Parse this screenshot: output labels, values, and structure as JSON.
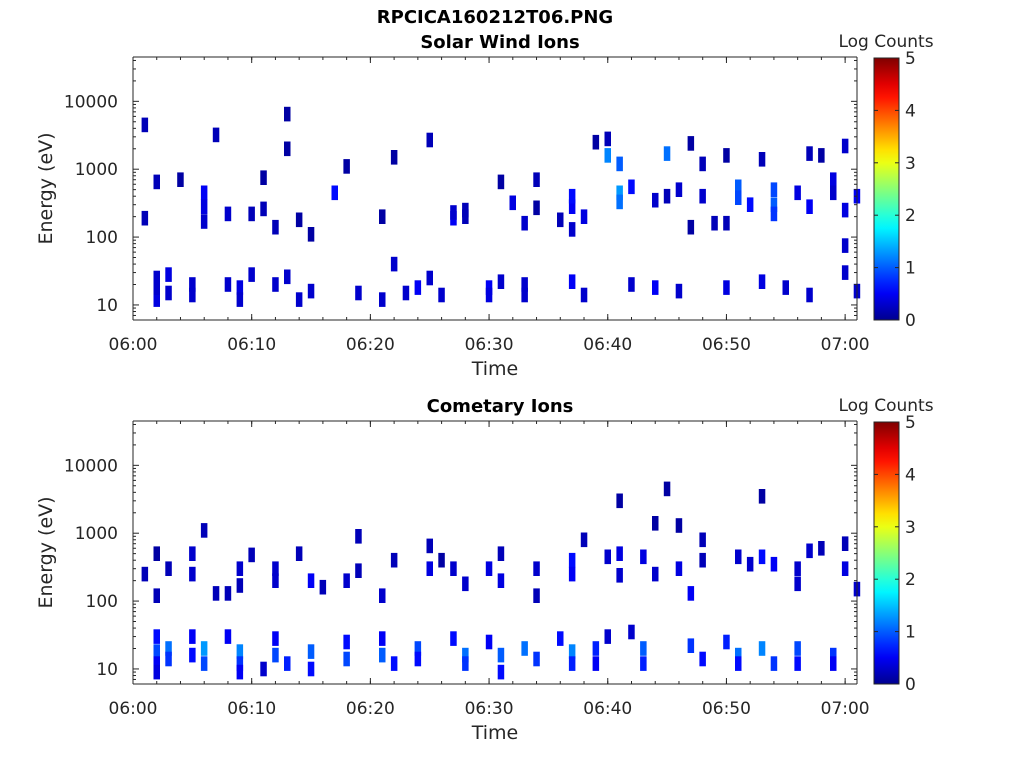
{
  "figure": {
    "title": "RPCICA160212T06.PNG"
  },
  "colormap": {
    "name": "jet",
    "stops": [
      "#00008f",
      "#0000ff",
      "#00ffff",
      "#ffff00",
      "#ff0000",
      "#800000"
    ]
  },
  "chart_data": [
    {
      "type": "heatmap",
      "title": "Solar Wind Ions",
      "xlabel": "Time",
      "ylabel": "Energy (eV)",
      "x_range": [
        "06:00",
        "07:01"
      ],
      "x_ticks": [
        "06:00",
        "06:10",
        "06:20",
        "06:30",
        "06:40",
        "06:50",
        "07:00"
      ],
      "y_scale": "log",
      "y_range": [
        6,
        45000
      ],
      "y_ticks": [
        10,
        100,
        1000,
        10000
      ],
      "y_tick_labels": [
        "10",
        "100",
        "1000",
        "10000"
      ],
      "colorbar": {
        "label": "Log Counts",
        "range": [
          0,
          5
        ],
        "ticks": [
          "0",
          "1",
          "2",
          "3",
          "4",
          "5"
        ]
      },
      "cells": [
        [
          "06:01",
          4500,
          0.2
        ],
        [
          "06:01",
          190,
          0.2
        ],
        [
          "06:02",
          650,
          0.2
        ],
        [
          "06:02",
          12,
          0.4
        ],
        [
          "06:02",
          18,
          0.3
        ],
        [
          "06:02",
          25,
          0.3
        ],
        [
          "06:03",
          28,
          0.4
        ],
        [
          "06:03",
          15,
          0.3
        ],
        [
          "06:04",
          700,
          0.1
        ],
        [
          "06:05",
          20,
          0.3
        ],
        [
          "06:05",
          14,
          0.3
        ],
        [
          "06:06",
          450,
          0.5
        ],
        [
          "06:06",
          280,
          0.4
        ],
        [
          "06:06",
          170,
          0.3
        ],
        [
          "06:07",
          3200,
          0.2
        ],
        [
          "06:08",
          220,
          0.3
        ],
        [
          "06:08",
          20,
          0.3
        ],
        [
          "06:09",
          18,
          0.4
        ],
        [
          "06:09",
          12,
          0.3
        ],
        [
          "06:10",
          28,
          0.3
        ],
        [
          "06:10",
          220,
          0.2
        ],
        [
          "06:11",
          260,
          0.2
        ],
        [
          "06:11",
          750,
          0.1
        ],
        [
          "06:12",
          20,
          0.3
        ],
        [
          "06:12",
          140,
          0.2
        ],
        [
          "06:13",
          6500,
          0.1
        ],
        [
          "06:13",
          2000,
          0.1
        ],
        [
          "06:13",
          26,
          0.3
        ],
        [
          "06:14",
          180,
          0.1
        ],
        [
          "06:14",
          12,
          0.3
        ],
        [
          "06:15",
          16,
          0.3
        ],
        [
          "06:15",
          110,
          0.1
        ],
        [
          "06:17",
          450,
          0.6
        ],
        [
          "06:18",
          1100,
          0.1
        ],
        [
          "06:19",
          15,
          0.3
        ],
        [
          "06:21",
          12,
          0.3
        ],
        [
          "06:21",
          200,
          0.1
        ],
        [
          "06:22",
          40,
          0.3
        ],
        [
          "06:22",
          1500,
          0.1
        ],
        [
          "06:23",
          15,
          0.3
        ],
        [
          "06:24",
          18,
          0.5
        ],
        [
          "06:25",
          25,
          0.3
        ],
        [
          "06:25",
          2700,
          0.2
        ],
        [
          "06:26",
          14,
          0.3
        ],
        [
          "06:27",
          190,
          0.5
        ],
        [
          "06:27",
          230,
          0.3
        ],
        [
          "06:28",
          200,
          0.2
        ],
        [
          "06:28",
          250,
          0.2
        ],
        [
          "06:30",
          18,
          0.5
        ],
        [
          "06:30",
          14,
          0.4
        ],
        [
          "06:31",
          22,
          0.3
        ],
        [
          "06:31",
          650,
          0.1
        ],
        [
          "06:32",
          320,
          0.4
        ],
        [
          "06:33",
          160,
          0.3
        ],
        [
          "06:33",
          20,
          0.3
        ],
        [
          "06:33",
          14,
          0.3
        ],
        [
          "06:34",
          700,
          0.2
        ],
        [
          "06:34",
          270,
          0.1
        ],
        [
          "06:36",
          180,
          0.2
        ],
        [
          "06:37",
          22,
          0.5
        ],
        [
          "06:37",
          280,
          0.5
        ],
        [
          "06:37",
          400,
          0.6
        ],
        [
          "06:37",
          130,
          0.3
        ],
        [
          "06:38",
          200,
          0.4
        ],
        [
          "06:38",
          14,
          0.3
        ],
        [
          "06:39",
          2500,
          0.1
        ],
        [
          "06:40",
          2800,
          0.2
        ],
        [
          "06:40",
          1600,
          1.2
        ],
        [
          "06:41",
          1200,
          1.0
        ],
        [
          "06:41",
          450,
          1.3
        ],
        [
          "06:41",
          330,
          1.1
        ],
        [
          "06:42",
          550,
          0.6
        ],
        [
          "06:42",
          20,
          0.3
        ],
        [
          "06:44",
          18,
          0.5
        ],
        [
          "06:44",
          350,
          0.3
        ],
        [
          "06:45",
          1700,
          1.1
        ],
        [
          "06:45",
          400,
          0.2
        ],
        [
          "06:46",
          16,
          0.3
        ],
        [
          "06:46",
          500,
          0.3
        ],
        [
          "06:47",
          140,
          0.1
        ],
        [
          "06:47",
          2400,
          0.1
        ],
        [
          "06:48",
          1200,
          0.2
        ],
        [
          "06:48",
          400,
          0.3
        ],
        [
          "06:49",
          160,
          0.2
        ],
        [
          "06:50",
          1600,
          0.1
        ],
        [
          "06:50",
          18,
          0.4
        ],
        [
          "06:50",
          160,
          0.2
        ],
        [
          "06:51",
          550,
          1.0
        ],
        [
          "06:51",
          380,
          0.9
        ],
        [
          "06:52",
          300,
          0.6
        ],
        [
          "06:53",
          1400,
          0.2
        ],
        [
          "06:53",
          22,
          0.4
        ],
        [
          "06:54",
          500,
          0.9
        ],
        [
          "06:54",
          300,
          1.0
        ],
        [
          "06:54",
          220,
          0.8
        ],
        [
          "06:55",
          18,
          0.3
        ],
        [
          "06:56",
          450,
          0.4
        ],
        [
          "06:57",
          1700,
          0.2
        ],
        [
          "06:57",
          14,
          0.3
        ],
        [
          "06:57",
          280,
          0.5
        ],
        [
          "06:58",
          1600,
          0.1
        ],
        [
          "06:59",
          700,
          0.4
        ],
        [
          "06:59",
          450,
          0.3
        ],
        [
          "07:00",
          75,
          0.3
        ],
        [
          "07:00",
          30,
          0.3
        ],
        [
          "07:00",
          2200,
          0.3
        ],
        [
          "07:00",
          250,
          0.4
        ],
        [
          "07:01",
          400,
          0.5
        ],
        [
          "07:01",
          16,
          0.3
        ]
      ]
    },
    {
      "type": "heatmap",
      "title": "Cometary Ions",
      "xlabel": "Time",
      "ylabel": "Energy (eV)",
      "x_range": [
        "06:00",
        "07:01"
      ],
      "x_ticks": [
        "06:00",
        "06:10",
        "06:20",
        "06:30",
        "06:40",
        "06:50",
        "07:00"
      ],
      "y_scale": "log",
      "y_range": [
        6,
        45000
      ],
      "y_ticks": [
        10,
        100,
        1000,
        10000
      ],
      "y_tick_labels": [
        "10",
        "100",
        "1000",
        "10000"
      ],
      "colorbar": {
        "label": "Log Counts",
        "range": [
          0,
          5
        ],
        "ticks": [
          "0",
          "1",
          "2",
          "3",
          "4",
          "5"
        ]
      },
      "cells": [
        [
          "06:01",
          250,
          0.2
        ],
        [
          "06:02",
          30,
          0.6
        ],
        [
          "06:02",
          18,
          0.9
        ],
        [
          "06:02",
          12,
          0.5
        ],
        [
          "06:02",
          9,
          0.4
        ],
        [
          "06:02",
          120,
          0.2
        ],
        [
          "06:02",
          500,
          0.1
        ],
        [
          "06:03",
          20,
          1.1
        ],
        [
          "06:03",
          14,
          0.8
        ],
        [
          "06:03",
          300,
          0.2
        ],
        [
          "06:05",
          30,
          0.5
        ],
        [
          "06:05",
          16,
          0.6
        ],
        [
          "06:06",
          20,
          1.3
        ],
        [
          "06:06",
          12,
          0.9
        ],
        [
          "06:06",
          1100,
          0.2
        ],
        [
          "06:05",
          500,
          0.3
        ],
        [
          "06:05",
          250,
          0.3
        ],
        [
          "06:07",
          130,
          0.2
        ],
        [
          "06:08",
          130,
          0.2
        ],
        [
          "06:08",
          30,
          0.5
        ],
        [
          "06:09",
          18,
          1.2
        ],
        [
          "06:09",
          12,
          0.8
        ],
        [
          "06:09",
          9,
          0.5
        ],
        [
          "06:09",
          300,
          0.3
        ],
        [
          "06:09",
          170,
          0.2
        ],
        [
          "06:10",
          480,
          0.2
        ],
        [
          "06:11",
          10,
          0.3
        ],
        [
          "06:12",
          28,
          0.5
        ],
        [
          "06:12",
          16,
          0.9
        ],
        [
          "06:13",
          12,
          0.7
        ],
        [
          "06:12",
          300,
          0.3
        ],
        [
          "06:12",
          200,
          0.3
        ],
        [
          "06:14",
          500,
          0.2
        ],
        [
          "06:15",
          18,
          1.0
        ],
        [
          "06:15",
          10,
          0.6
        ],
        [
          "06:15",
          200,
          0.5
        ],
        [
          "06:16",
          160,
          0.2
        ],
        [
          "06:18",
          25,
          0.6
        ],
        [
          "06:18",
          14,
          0.9
        ],
        [
          "06:18",
          200,
          0.3
        ],
        [
          "06:19",
          900,
          0.2
        ],
        [
          "06:19",
          280,
          0.2
        ],
        [
          "06:21",
          28,
          0.5
        ],
        [
          "06:21",
          16,
          1.0
        ],
        [
          "06:22",
          12,
          0.6
        ],
        [
          "06:21",
          120,
          0.3
        ],
        [
          "06:22",
          400,
          0.2
        ],
        [
          "06:24",
          20,
          0.9
        ],
        [
          "06:24",
          14,
          0.6
        ],
        [
          "06:25",
          300,
          0.4
        ],
        [
          "06:25",
          650,
          0.2
        ],
        [
          "06:26",
          400,
          0.1
        ],
        [
          "06:27",
          28,
          0.6
        ],
        [
          "06:28",
          16,
          1.1
        ],
        [
          "06:28",
          12,
          0.8
        ],
        [
          "06:27",
          300,
          0.3
        ],
        [
          "06:28",
          180,
          0.3
        ],
        [
          "06:30",
          25,
          0.5
        ],
        [
          "06:31",
          16,
          1.0
        ],
        [
          "06:31",
          9,
          0.6
        ],
        [
          "06:30",
          300,
          0.4
        ],
        [
          "06:31",
          200,
          0.4
        ],
        [
          "06:31",
          500,
          0.2
        ],
        [
          "06:33",
          20,
          1.1
        ],
        [
          "06:34",
          14,
          0.8
        ],
        [
          "06:34",
          300,
          0.3
        ],
        [
          "06:34",
          120,
          0.2
        ],
        [
          "06:36",
          28,
          0.6
        ],
        [
          "06:37",
          18,
          1.2
        ],
        [
          "06:37",
          12,
          0.7
        ],
        [
          "06:37",
          400,
          0.6
        ],
        [
          "06:37",
          250,
          0.5
        ],
        [
          "06:38",
          800,
          0.2
        ],
        [
          "06:39",
          20,
          0.7
        ],
        [
          "06:39",
          12,
          0.5
        ],
        [
          "06:40",
          30,
          0.3
        ],
        [
          "06:40",
          450,
          0.3
        ],
        [
          "06:41",
          500,
          0.4
        ],
        [
          "06:41",
          3000,
          0.1
        ],
        [
          "06:41",
          240,
          0.3
        ],
        [
          "06:42",
          35,
          0.3
        ],
        [
          "06:43",
          20,
          1.0
        ],
        [
          "06:43",
          12,
          0.7
        ],
        [
          "06:43",
          450,
          0.4
        ],
        [
          "06:44",
          250,
          0.3
        ],
        [
          "06:44",
          1400,
          0.1
        ],
        [
          "06:45",
          4500,
          0.1
        ],
        [
          "06:46",
          1300,
          0.1
        ],
        [
          "06:46",
          300,
          0.4
        ],
        [
          "06:47",
          130,
          0.5
        ],
        [
          "06:47",
          22,
          0.8
        ],
        [
          "06:48",
          14,
          0.6
        ],
        [
          "06:48",
          800,
          0.2
        ],
        [
          "06:48",
          400,
          0.2
        ],
        [
          "06:50",
          25,
          0.7
        ],
        [
          "06:51",
          16,
          1.1
        ],
        [
          "06:51",
          12,
          0.6
        ],
        [
          "06:51",
          450,
          0.3
        ],
        [
          "06:52",
          350,
          0.3
        ],
        [
          "06:53",
          3500,
          0.1
        ],
        [
          "06:53",
          450,
          0.6
        ],
        [
          "06:53",
          20,
          1.2
        ],
        [
          "06:54",
          12,
          0.8
        ],
        [
          "06:54",
          350,
          0.5
        ],
        [
          "06:56",
          20,
          0.9
        ],
        [
          "06:56",
          12,
          0.6
        ],
        [
          "06:56",
          180,
          0.3
        ],
        [
          "06:57",
          550,
          0.3
        ],
        [
          "06:56",
          300,
          0.3
        ],
        [
          "06:58",
          600,
          0.2
        ],
        [
          "06:59",
          16,
          0.8
        ],
        [
          "06:59",
          12,
          0.5
        ],
        [
          "07:00",
          300,
          0.4
        ],
        [
          "07:00",
          700,
          0.2
        ],
        [
          "07:01",
          150,
          0.3
        ]
      ]
    }
  ]
}
